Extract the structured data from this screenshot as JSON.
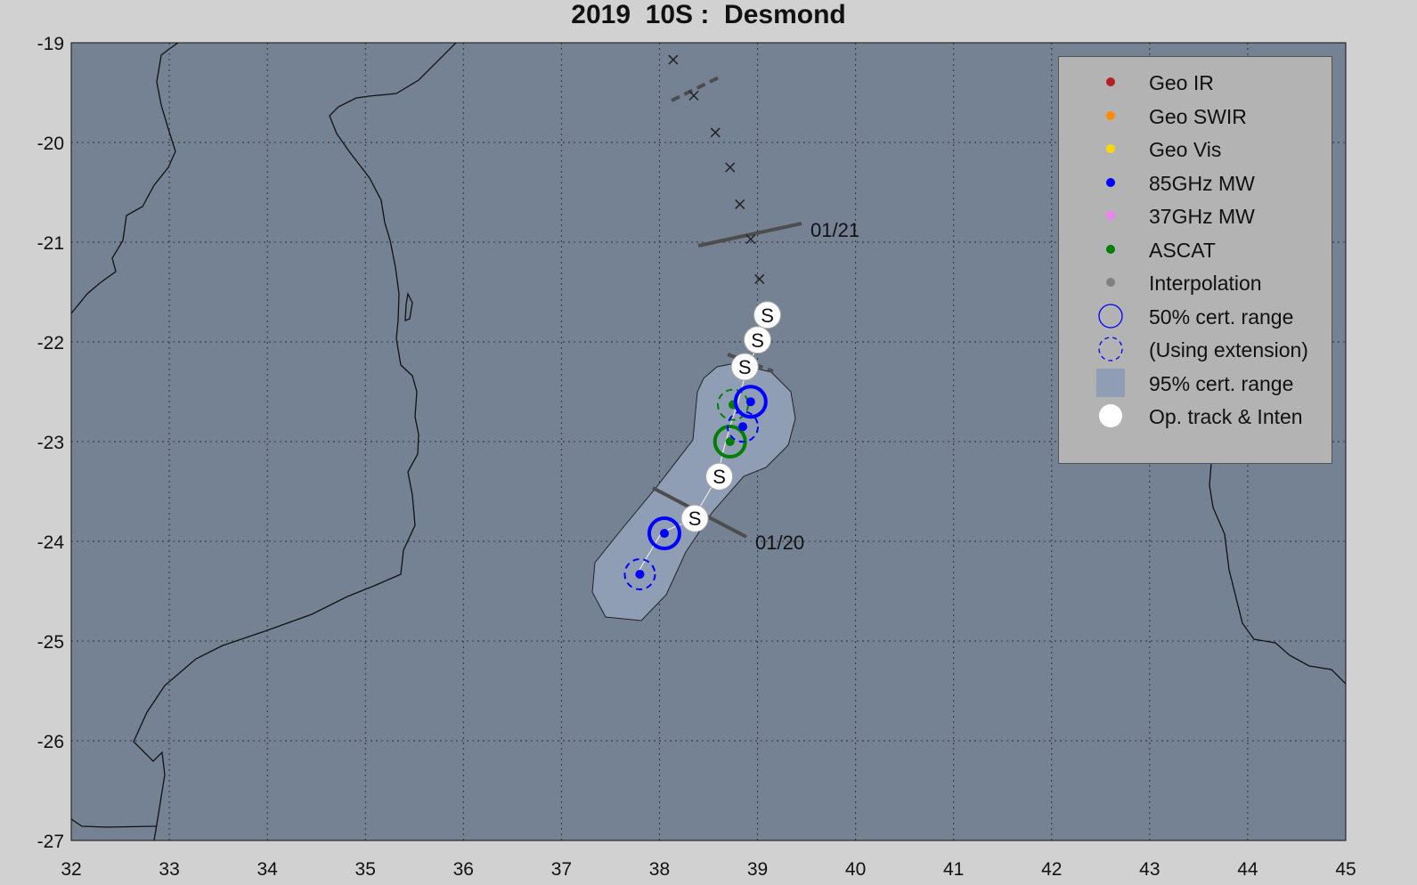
{
  "title": "2019  10S :  Desmond",
  "chart_data": {
    "type": "scatter",
    "title": "2019  10S :  Desmond",
    "xlim": [
      32,
      45
    ],
    "ylim": [
      -27,
      -19
    ],
    "x_ticks": [
      "32",
      "33",
      "34",
      "35",
      "36",
      "37",
      "38",
      "39",
      "40",
      "41",
      "42",
      "43",
      "44",
      "45"
    ],
    "y_ticks": [
      "-19",
      "-20",
      "-21",
      "-22",
      "-23",
      "-24",
      "-25",
      "-26",
      "-27"
    ],
    "grid": true,
    "colors": {
      "background": "#d1d1d1",
      "ocean": "#748293",
      "cone": "#8f9db5",
      "mw": "#0000ff",
      "ascat": "#008000",
      "track_line": "#4d4d4d"
    },
    "legend": {
      "placement": "top-right",
      "items": [
        {
          "label": "Geo IR",
          "color": "#b22222",
          "symbol": "dot"
        },
        {
          "label": "Geo SWIR",
          "color": "#ff8c00",
          "symbol": "dot"
        },
        {
          "label": "Geo Vis",
          "color": "#ffd700",
          "symbol": "dot"
        },
        {
          "label": "85GHz MW",
          "color": "#0000ff",
          "symbol": "dot"
        },
        {
          "label": "37GHz MW",
          "color": "#ee82ee",
          "symbol": "dot"
        },
        {
          "label": "ASCAT",
          "color": "#008000",
          "symbol": "dot"
        },
        {
          "label": "Interpolation",
          "color": "#808080",
          "symbol": "dot"
        },
        {
          "label": "50% cert. range",
          "color": "#0000ff",
          "symbol": "circle"
        },
        {
          "label": "(Using extension)",
          "color": "#0000ff",
          "symbol": "dashed-circle"
        },
        {
          "label": "95% cert. range",
          "color": "#8f9db5",
          "symbol": "square"
        },
        {
          "label": "Op. track & Inten",
          "color": "#ffffff",
          "symbol": "big-dot"
        }
      ]
    },
    "forecast_track_x": [
      {
        "lon": 38.14,
        "lat": -19.17
      },
      {
        "lon": 38.35,
        "lat": -19.53
      },
      {
        "lon": 38.57,
        "lat": -19.9
      },
      {
        "lon": 38.72,
        "lat": -20.25
      },
      {
        "lon": 38.82,
        "lat": -20.62
      },
      {
        "lon": 38.93,
        "lat": -20.97
      },
      {
        "lon": 39.02,
        "lat": -21.37
      }
    ],
    "op_track": [
      {
        "lon": 39.1,
        "lat": -21.73,
        "label": "S"
      },
      {
        "lon": 39.0,
        "lat": -21.98,
        "label": "S"
      },
      {
        "lon": 38.87,
        "lat": -22.25,
        "label": "S"
      },
      {
        "lon": 38.61,
        "lat": -23.35,
        "label": "S"
      },
      {
        "lon": 38.36,
        "lat": -23.77,
        "label": "S"
      }
    ],
    "mw_fixes": [
      {
        "lon": 38.93,
        "lat": -22.6,
        "extension": false
      },
      {
        "lon": 38.85,
        "lat": -22.85,
        "extension": true
      },
      {
        "lon": 38.05,
        "lat": -23.92,
        "extension": false
      },
      {
        "lon": 37.8,
        "lat": -24.33,
        "extension": true
      }
    ],
    "ascat_fixes": [
      {
        "lon": 38.75,
        "lat": -22.63,
        "extension": true
      },
      {
        "lon": 38.72,
        "lat": -23.0,
        "extension": false
      }
    ],
    "date_markers": [
      {
        "label": "01/21",
        "lon": 38.55,
        "lat": -20.9
      },
      {
        "label": "01/20",
        "lon": 38.6,
        "lat": -23.7
      }
    ]
  }
}
